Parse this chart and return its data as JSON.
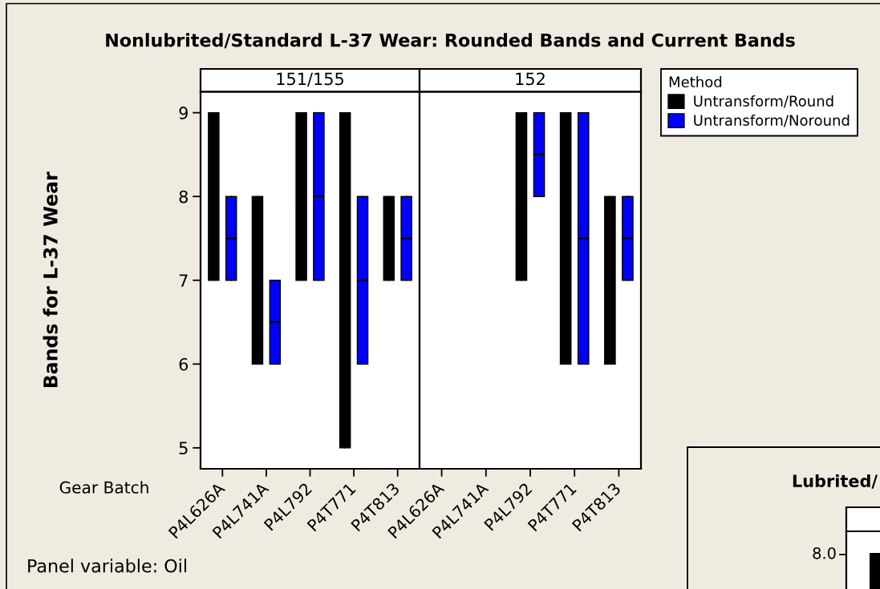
{
  "chart_data": [
    {
      "type": "box",
      "title": "Nonlubrited/Standard L-37 Wear: Rounded Bands and Current Bands",
      "subtitle": "151/155",
      "xlabel": "Gear Batch",
      "ylabel": "Bands for L-37 Wear",
      "legend_title": "Method",
      "legend": "top right",
      "annotations": [
        "Panel variable: Oil"
      ],
      "categories": [
        "P4L626A",
        "P4L741A",
        "P4L792",
        "P4T771",
        "P4T813"
      ],
      "ylim": [
        4.75,
        9.25
      ],
      "yticks": [
        5,
        6,
        7,
        8,
        9
      ],
      "series": [
        {
          "name": "Untransform/Round",
          "color": "#000000",
          "boxes": [
            {
              "low": 7,
              "q1": 7,
              "median": 8,
              "q3": 9,
              "high": 9
            },
            {
              "low": 6,
              "q1": 6,
              "median": 7,
              "q3": 8,
              "high": 8
            },
            {
              "low": 7,
              "q1": 7,
              "median": 8,
              "q3": 9,
              "high": 9
            },
            {
              "low": 5,
              "q1": 5,
              "median": 7,
              "q3": 9,
              "high": 9
            },
            {
              "low": 7,
              "q1": 7,
              "median": 7.5,
              "q3": 8,
              "high": 8
            }
          ]
        },
        {
          "name": "Untransform/Noround",
          "color": "#0000ff",
          "boxes": [
            {
              "low": 7,
              "q1": 7,
              "median": 7.5,
              "q3": 8,
              "high": 8
            },
            {
              "low": 6,
              "q1": 6,
              "median": 6.5,
              "q3": 7,
              "high": 7
            },
            {
              "low": 7,
              "q1": 7,
              "median": 8,
              "q3": 9,
              "high": 9
            },
            {
              "low": 6,
              "q1": 6,
              "median": 7,
              "q3": 8,
              "high": 8
            },
            {
              "low": 7,
              "q1": 7,
              "median": 7.5,
              "q3": 8,
              "high": 8
            }
          ]
        }
      ]
    },
    {
      "type": "box",
      "subtitle": "152",
      "categories": [
        "P4L626A",
        "P4L741A",
        "P4L792",
        "P4T771",
        "P4T813"
      ],
      "ylim": [
        4.75,
        9.25
      ],
      "tick_labels": "x",
      "series": [
        {
          "color": "#000000",
          "boxes": [
            null,
            null,
            {
              "low": 7,
              "q1": 7,
              "median": 8,
              "q3": 9,
              "high": 9
            },
            {
              "low": 6,
              "q1": 6,
              "median": 7.5,
              "q3": 9,
              "high": 9
            },
            {
              "low": 6,
              "q1": 6,
              "median": 7,
              "q3": 8,
              "high": 8
            }
          ]
        },
        {
          "color": "#0000ff",
          "boxes": [
            null,
            null,
            {
              "low": 8,
              "q1": 8,
              "median": 8.5,
              "q3": 9,
              "high": 9
            },
            {
              "low": 6,
              "q1": 6,
              "median": 7.5,
              "q3": 9,
              "high": 9
            },
            {
              "low": 7,
              "q1": 7,
              "median": 7.5,
              "q3": 8,
              "high": 8
            }
          ]
        }
      ]
    },
    {
      "type": "other",
      "title": "Lubrited/",
      "annotations": [
        "8.0"
      ]
    }
  ]
}
